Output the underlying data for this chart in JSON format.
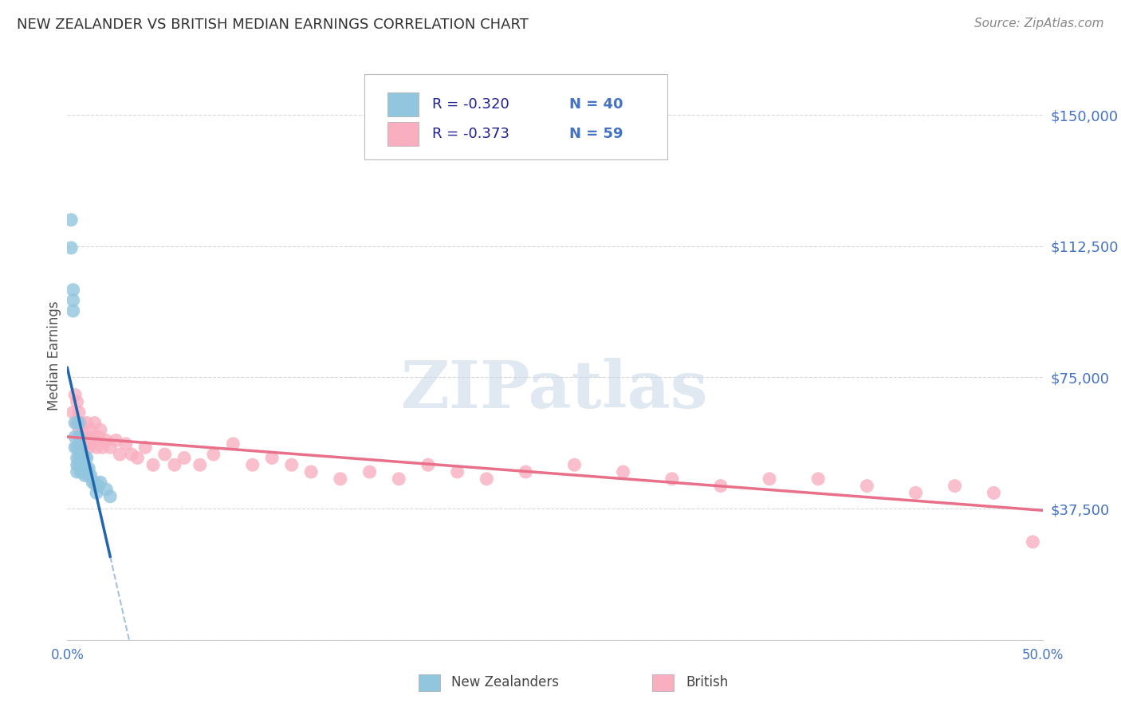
{
  "title": "NEW ZEALANDER VS BRITISH MEDIAN EARNINGS CORRELATION CHART",
  "source": "Source: ZipAtlas.com",
  "ylabel": "Median Earnings",
  "xlim": [
    0.0,
    0.5
  ],
  "ylim": [
    0,
    162500
  ],
  "yticks": [
    0,
    37500,
    75000,
    112500,
    150000
  ],
  "ytick_labels": [
    "",
    "$37,500",
    "$75,000",
    "$112,500",
    "$150,000"
  ],
  "xtick_positions": [
    0.0,
    0.1,
    0.2,
    0.3,
    0.4,
    0.5
  ],
  "xtick_labels": [
    "0.0%",
    "",
    "",
    "",
    "",
    "50.0%"
  ],
  "nz_R": "-0.320",
  "nz_N": "40",
  "br_R": "-0.373",
  "br_N": "59",
  "nz_color": "#92c5de",
  "british_color": "#f9afc0",
  "nz_line_color": "#2166ac",
  "british_line_color": "#e8708a",
  "background_color": "#ffffff",
  "grid_color": "#d8d8d8",
  "tick_color": "#4472c4",
  "legend_text_color": "#1f1f8f",
  "legend_n_color": "#4472c4",
  "watermark_color": "#c8d8e8",
  "nz_scatter_x": [
    0.002,
    0.002,
    0.003,
    0.003,
    0.003,
    0.004,
    0.004,
    0.004,
    0.005,
    0.005,
    0.005,
    0.005,
    0.006,
    0.006,
    0.006,
    0.006,
    0.006,
    0.007,
    0.007,
    0.007,
    0.007,
    0.008,
    0.008,
    0.008,
    0.009,
    0.009,
    0.009,
    0.01,
    0.01,
    0.011,
    0.011,
    0.012,
    0.013,
    0.014,
    0.015,
    0.015,
    0.016,
    0.017,
    0.02,
    0.022
  ],
  "nz_scatter_y": [
    120000,
    112000,
    100000,
    97000,
    94000,
    62000,
    58000,
    55000,
    55000,
    52000,
    50000,
    48000,
    62000,
    58000,
    55000,
    52000,
    50000,
    55000,
    52000,
    50000,
    48000,
    53000,
    50000,
    48000,
    52000,
    49000,
    47000,
    52000,
    49000,
    49000,
    47000,
    47000,
    45000,
    45000,
    44000,
    42000,
    44000,
    45000,
    43000,
    41000
  ],
  "british_scatter_x": [
    0.003,
    0.004,
    0.005,
    0.005,
    0.006,
    0.006,
    0.007,
    0.007,
    0.008,
    0.008,
    0.009,
    0.01,
    0.01,
    0.011,
    0.012,
    0.012,
    0.013,
    0.014,
    0.015,
    0.016,
    0.017,
    0.018,
    0.02,
    0.022,
    0.025,
    0.027,
    0.03,
    0.033,
    0.036,
    0.04,
    0.044,
    0.05,
    0.055,
    0.06,
    0.068,
    0.075,
    0.085,
    0.095,
    0.105,
    0.115,
    0.125,
    0.14,
    0.155,
    0.17,
    0.185,
    0.2,
    0.215,
    0.235,
    0.26,
    0.285,
    0.31,
    0.335,
    0.36,
    0.385,
    0.41,
    0.435,
    0.455,
    0.475,
    0.495
  ],
  "british_scatter_y": [
    65000,
    70000,
    68000,
    62000,
    65000,
    60000,
    62000,
    58000,
    60000,
    56000,
    58000,
    62000,
    57000,
    55000,
    60000,
    56000,
    58000,
    62000,
    55000,
    58000,
    60000,
    55000,
    57000,
    55000,
    57000,
    53000,
    56000,
    53000,
    52000,
    55000,
    50000,
    53000,
    50000,
    52000,
    50000,
    53000,
    56000,
    50000,
    52000,
    50000,
    48000,
    46000,
    48000,
    46000,
    50000,
    48000,
    46000,
    48000,
    50000,
    48000,
    46000,
    44000,
    46000,
    46000,
    44000,
    42000,
    44000,
    42000,
    28000
  ]
}
